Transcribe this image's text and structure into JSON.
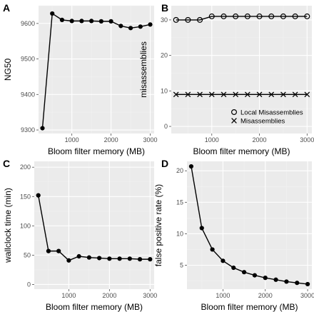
{
  "chart_data": [
    {
      "panel": "A",
      "type": "line",
      "xlabel": "Bloom filter memory (MB)",
      "ylabel": "NG50",
      "xlim": [
        150,
        3100
      ],
      "ylim": [
        9290,
        9650
      ],
      "xticks": [
        1000,
        2000,
        3000
      ],
      "yticks": [
        9300,
        9400,
        9500,
        9600
      ],
      "grid": true,
      "series": [
        {
          "marker": "filled-circle",
          "x": [
            250,
            500,
            750,
            1000,
            1250,
            1500,
            1750,
            2000,
            2250,
            2500,
            2750,
            3000
          ],
          "y": [
            9305,
            9628,
            9610,
            9607,
            9607,
            9607,
            9606,
            9606,
            9593,
            9587,
            9591,
            9597
          ]
        }
      ]
    },
    {
      "panel": "B",
      "type": "line",
      "xlabel": "Bloom filter memory (MB)",
      "ylabel": "misassemblies",
      "xlim": [
        150,
        3100
      ],
      "ylim": [
        -2,
        34
      ],
      "xticks": [
        1000,
        2000,
        3000
      ],
      "yticks": [
        0,
        10,
        20,
        30
      ],
      "grid": true,
      "legend_position": "bottom-right",
      "series": [
        {
          "name": "Local Misassemblies",
          "marker": "open-circle",
          "x": [
            250,
            500,
            750,
            1000,
            1250,
            1500,
            1750,
            2000,
            2250,
            2500,
            2750,
            3000
          ],
          "y": [
            30,
            30,
            30,
            31,
            31,
            31,
            31,
            31,
            31,
            31,
            31,
            31
          ]
        },
        {
          "name": "Misassemblies",
          "marker": "cross",
          "x": [
            250,
            500,
            750,
            1000,
            1250,
            1500,
            1750,
            2000,
            2250,
            2500,
            2750,
            3000
          ],
          "y": [
            9,
            9,
            9,
            9,
            9,
            9,
            9,
            9,
            9,
            9,
            9,
            9
          ]
        }
      ]
    },
    {
      "panel": "C",
      "type": "line",
      "xlabel": "Bloom filter memory (MB)",
      "ylabel": "wallclock time (min)",
      "xlim": [
        150,
        3100
      ],
      "ylim": [
        -8,
        210
      ],
      "xticks": [
        1000,
        2000,
        3000
      ],
      "yticks": [
        0,
        50,
        100,
        150,
        200
      ],
      "grid": true,
      "series": [
        {
          "marker": "filled-circle",
          "x": [
            250,
            500,
            750,
            1000,
            1250,
            1500,
            1750,
            2000,
            2250,
            2500,
            2750,
            3000
          ],
          "y": [
            152,
            57,
            57,
            41,
            48,
            46,
            45,
            44,
            44,
            44,
            43,
            43
          ]
        }
      ]
    },
    {
      "panel": "D",
      "type": "line",
      "xlabel": "Bloom filter memory (MB)",
      "ylabel": "false positive rate (%)",
      "xlim": [
        150,
        3100
      ],
      "ylim": [
        1.2,
        21.5
      ],
      "xticks": [
        1000,
        2000,
        3000
      ],
      "yticks": [
        5,
        10,
        15,
        20
      ],
      "grid": true,
      "series": [
        {
          "marker": "filled-circle",
          "x": [
            250,
            500,
            750,
            1000,
            1250,
            1500,
            1750,
            2000,
            2250,
            2500,
            2750,
            3000
          ],
          "y": [
            20.7,
            10.9,
            7.5,
            5.7,
            4.6,
            3.9,
            3.4,
            3.0,
            2.7,
            2.4,
            2.2,
            2.0
          ]
        }
      ]
    }
  ]
}
